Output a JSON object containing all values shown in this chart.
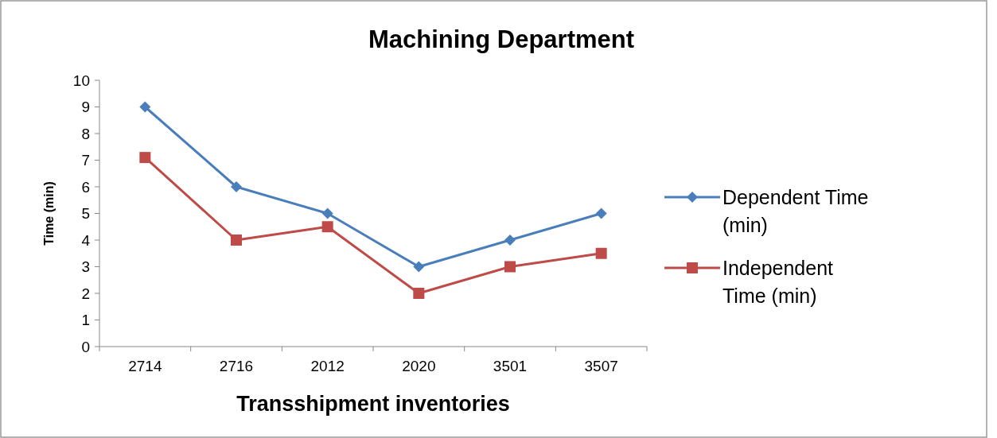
{
  "chart_data": {
    "type": "line",
    "title": "Machining Department",
    "xlabel": "Transshipment inventories",
    "ylabel": "Time (min)",
    "categories": [
      "2714",
      "2716",
      "2012",
      "2020",
      "3501",
      "3507"
    ],
    "series": [
      {
        "name": "Dependent Time (min)",
        "color": "#4a7ebb",
        "marker": "diamond",
        "values": [
          9,
          6,
          5,
          3,
          4,
          5
        ]
      },
      {
        "name": "Independent Time (min)",
        "color": "#be4b48",
        "marker": "square",
        "values": [
          7.1,
          4,
          4.5,
          2,
          3,
          3.5
        ]
      }
    ],
    "ylim": [
      0,
      10
    ],
    "yticks": [
      0,
      1,
      2,
      3,
      4,
      5,
      6,
      7,
      8,
      9,
      10
    ],
    "grid": false,
    "legend": "right",
    "line_style": "solid"
  }
}
